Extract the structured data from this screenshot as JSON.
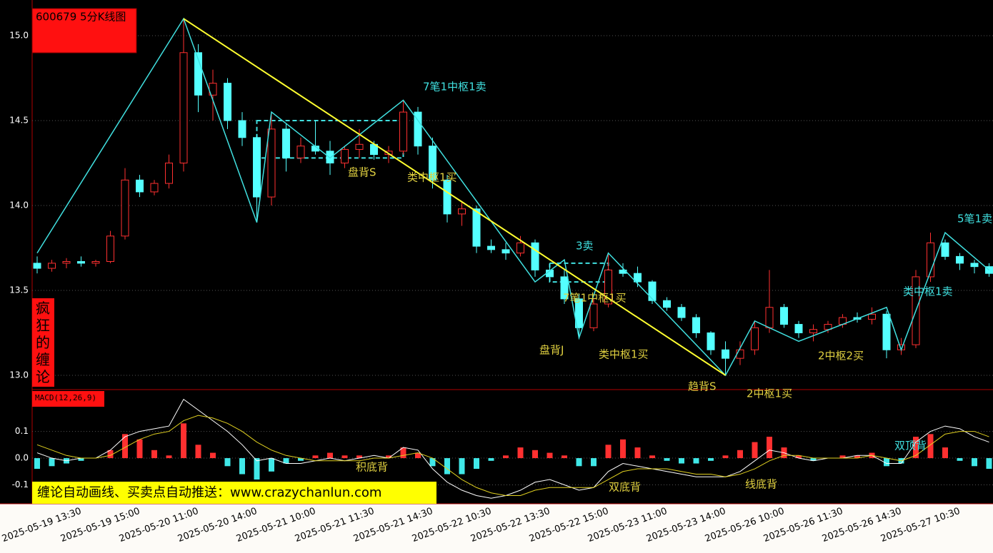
{
  "side_label": "疯狂的缠论",
  "banner": "缠论自动画线、买卖点自动推送：www.crazychanlun.com",
  "chart_data": [
    {
      "type": "candlestick",
      "title": "600679 5分K线图",
      "open": [
        13.66,
        13.63,
        13.66,
        13.67,
        13.66,
        13.67,
        13.82,
        14.15,
        14.08,
        14.13,
        14.25,
        14.9,
        14.65,
        14.72,
        14.5,
        14.4,
        14.05,
        14.45,
        14.28,
        14.35,
        14.32,
        14.25,
        14.33,
        14.36,
        14.3,
        14.32,
        14.55,
        14.35,
        14.15,
        13.95,
        13.98,
        13.76,
        13.74,
        13.72,
        13.78,
        13.62,
        13.58,
        13.45,
        13.28,
        13.42,
        13.62,
        13.6,
        13.55,
        13.44,
        13.4,
        13.34,
        13.25,
        13.15,
        13.1,
        13.15,
        13.28,
        13.4,
        13.3,
        13.25,
        13.27,
        13.3,
        13.34,
        13.33,
        13.36,
        13.15,
        13.18,
        13.58,
        13.78,
        13.7,
        13.66,
        13.64
      ],
      "high": [
        13.7,
        13.68,
        13.69,
        13.7,
        13.68,
        13.85,
        14.22,
        14.18,
        14.15,
        14.3,
        15.1,
        14.95,
        14.8,
        14.75,
        14.55,
        14.42,
        14.55,
        14.48,
        14.4,
        14.5,
        14.38,
        14.35,
        14.45,
        14.38,
        14.35,
        14.62,
        14.58,
        14.4,
        14.18,
        14.02,
        14.0,
        13.8,
        13.78,
        13.82,
        13.8,
        13.66,
        13.62,
        13.48,
        13.45,
        13.72,
        13.66,
        13.64,
        13.56,
        13.46,
        13.42,
        13.36,
        13.26,
        13.2,
        13.2,
        13.32,
        13.62,
        13.42,
        13.32,
        13.3,
        13.32,
        13.36,
        13.37,
        13.4,
        13.38,
        13.22,
        13.62,
        13.84,
        13.8,
        13.72,
        13.68,
        13.66
      ],
      "low": [
        13.6,
        13.61,
        13.63,
        13.64,
        13.64,
        13.66,
        13.8,
        14.05,
        14.06,
        14.1,
        14.2,
        14.55,
        14.5,
        14.45,
        14.35,
        13.9,
        14.0,
        14.2,
        14.25,
        14.3,
        14.18,
        14.22,
        14.28,
        14.27,
        14.25,
        14.3,
        14.3,
        14.1,
        13.9,
        13.88,
        13.72,
        13.72,
        13.68,
        13.7,
        13.58,
        13.55,
        13.42,
        13.22,
        13.26,
        13.4,
        13.58,
        13.52,
        13.42,
        13.38,
        13.32,
        13.22,
        13.12,
        13.0,
        13.06,
        13.12,
        13.25,
        13.28,
        13.22,
        13.2,
        13.25,
        13.28,
        13.31,
        13.3,
        13.1,
        13.12,
        13.16,
        13.55,
        13.68,
        13.62,
        13.6,
        13.58
      ],
      "close": [
        13.63,
        13.66,
        13.67,
        13.66,
        13.67,
        13.82,
        14.15,
        14.08,
        14.13,
        14.25,
        14.9,
        14.65,
        14.72,
        14.5,
        14.4,
        14.05,
        14.45,
        14.28,
        14.35,
        14.32,
        14.25,
        14.33,
        14.36,
        14.3,
        14.32,
        14.55,
        14.35,
        14.15,
        13.95,
        13.98,
        13.76,
        13.74,
        13.72,
        13.78,
        13.62,
        13.58,
        13.45,
        13.28,
        13.42,
        13.62,
        13.6,
        13.55,
        13.44,
        13.4,
        13.34,
        13.25,
        13.15,
        13.1,
        13.15,
        13.28,
        13.4,
        13.3,
        13.25,
        13.27,
        13.3,
        13.34,
        13.33,
        13.36,
        13.15,
        13.18,
        13.58,
        13.78,
        13.7,
        13.66,
        13.64,
        13.6
      ],
      "up_color": "#ff3030",
      "down_color": "#54ffff",
      "ylim": [
        12.92,
        15.21
      ],
      "yticks": [
        {
          "value": 13,
          "label": "13.0"
        },
        13.5,
        {
          "value": 14,
          "label": "14.0"
        },
        14.5,
        {
          "value": 15,
          "label": "15.0"
        }
      ],
      "grid": true,
      "strokes": {
        "color": "#40e0e0",
        "x": [
          0,
          10,
          15,
          16,
          20,
          25,
          34,
          36,
          37,
          39,
          47,
          49,
          52,
          58,
          59,
          62,
          65
        ],
        "y": [
          13.72,
          15.1,
          13.9,
          14.55,
          14.28,
          14.62,
          13.55,
          13.68,
          13.22,
          13.72,
          13.0,
          13.32,
          13.2,
          13.4,
          13.15,
          13.84,
          13.62
        ]
      },
      "trend_line": {
        "color": "#ffff30",
        "x": [
          10,
          47
        ],
        "y": [
          15.1,
          13.0
        ]
      },
      "zones": [
        {
          "x": [
            15,
            25
          ],
          "y": [
            14.28,
            14.5
          ]
        },
        {
          "x": [
            35,
            39
          ],
          "y": [
            13.55,
            13.66
          ]
        }
      ],
      "annotations": [
        {
          "text": "7笔1中枢1卖",
          "color": "#40e0e0"
        },
        {
          "text": "盘背S",
          "color": "#e0d040"
        },
        {
          "text": "类中枢1买",
          "color": "#e0d040"
        },
        {
          "text": "3卖",
          "color": "#40e0e0"
        },
        {
          "text": "7笔1中枢1买",
          "color": "#e0d040"
        },
        {
          "text": "盘背J",
          "color": "#e0d040"
        },
        {
          "text": "类中枢1买",
          "color": "#e0d040"
        },
        {
          "text": "趋背S",
          "color": "#e0d040"
        },
        {
          "text": "2中枢1买",
          "color": "#e0d040"
        },
        {
          "text": "2中枢2买",
          "color": "#e0d040"
        },
        {
          "text": "类中枢1卖",
          "color": "#40e0e0"
        },
        {
          "text": "5笔1卖",
          "color": "#40e0e0"
        }
      ]
    },
    {
      "type": "macd",
      "title": "MACD(12,26,9)",
      "categories": [
        null,
        null,
        null,
        "2025-05-19 13:30",
        null,
        null,
        null,
        "2025-05-19 15:00",
        null,
        null,
        null,
        "2025-05-20 11:00",
        null,
        null,
        null,
        "2025-05-20 14:00",
        null,
        null,
        null,
        "2025-05-21 10:00",
        null,
        null,
        null,
        "2025-05-21 11:30",
        null,
        null,
        null,
        "2025-05-21 14:30",
        null,
        null,
        null,
        "2025-05-22 10:30",
        null,
        null,
        null,
        "2025-05-22 13:30",
        null,
        null,
        null,
        "2025-05-22 15:00",
        null,
        null,
        null,
        "2025-05-23 11:00",
        null,
        null,
        null,
        "2025-05-23 14:00",
        null,
        null,
        null,
        "2025-05-26 10:00",
        null,
        null,
        null,
        "2025-05-26 11:30",
        null,
        null,
        null,
        "2025-05-26 14:30",
        null,
        null,
        null,
        "2025-05-27 10:30",
        null,
        null
      ],
      "histogram": {
        "up_color": "#ff3030",
        "down_color": "#40e8e8",
        "values": [
          -0.04,
          -0.03,
          -0.02,
          -0.01,
          0.0,
          0.03,
          0.09,
          0.07,
          0.03,
          0.01,
          0.13,
          0.05,
          0.02,
          -0.03,
          -0.06,
          -0.08,
          -0.05,
          -0.02,
          -0.01,
          0.01,
          0.02,
          0.01,
          0.01,
          0.0,
          0.01,
          0.04,
          0.02,
          -0.03,
          -0.06,
          -0.06,
          -0.04,
          -0.01,
          0.01,
          0.04,
          0.03,
          0.02,
          0.01,
          -0.03,
          -0.03,
          0.05,
          0.07,
          0.04,
          0.01,
          -0.01,
          -0.02,
          -0.02,
          -0.01,
          0.01,
          0.03,
          0.06,
          0.08,
          0.04,
          0.01,
          -0.01,
          0.0,
          0.01,
          0.01,
          0.02,
          -0.03,
          -0.02,
          0.08,
          0.09,
          0.04,
          -0.01,
          -0.03,
          -0.04
        ]
      },
      "dif": {
        "color": "#ffffff",
        "values": [
          0.02,
          0.0,
          -0.01,
          0.0,
          0.0,
          0.03,
          0.08,
          0.1,
          0.11,
          0.12,
          0.22,
          0.18,
          0.14,
          0.1,
          0.05,
          -0.01,
          0.0,
          -0.02,
          -0.02,
          -0.01,
          0.0,
          -0.01,
          0.0,
          0.01,
          0.0,
          0.04,
          0.03,
          -0.04,
          -0.09,
          -0.12,
          -0.14,
          -0.15,
          -0.14,
          -0.12,
          -0.09,
          -0.08,
          -0.1,
          -0.12,
          -0.11,
          -0.05,
          -0.02,
          -0.03,
          -0.04,
          -0.05,
          -0.06,
          -0.07,
          -0.07,
          -0.07,
          -0.05,
          -0.01,
          0.03,
          0.02,
          0.0,
          -0.01,
          0.0,
          0.0,
          0.01,
          0.01,
          -0.02,
          -0.02,
          0.06,
          0.1,
          0.12,
          0.11,
          0.08,
          0.06
        ]
      },
      "dea": {
        "color": "#e0d020",
        "values": [
          0.05,
          0.03,
          0.01,
          0.0,
          0.0,
          0.01,
          0.04,
          0.07,
          0.09,
          0.1,
          0.14,
          0.16,
          0.15,
          0.13,
          0.1,
          0.06,
          0.03,
          0.01,
          0.0,
          -0.01,
          -0.01,
          -0.01,
          -0.01,
          0.0,
          0.0,
          0.01,
          0.02,
          0.0,
          -0.04,
          -0.08,
          -0.11,
          -0.13,
          -0.14,
          -0.14,
          -0.12,
          -0.11,
          -0.11,
          -0.11,
          -0.11,
          -0.08,
          -0.05,
          -0.04,
          -0.04,
          -0.04,
          -0.05,
          -0.06,
          -0.06,
          -0.07,
          -0.06,
          -0.04,
          -0.01,
          0.01,
          0.01,
          0.0,
          0.0,
          0.0,
          0.0,
          0.01,
          0.0,
          -0.01,
          0.01,
          0.05,
          0.09,
          0.1,
          0.1,
          0.08
        ]
      },
      "ylim": [
        -0.168,
        0.251
      ],
      "yticks": [
        -0.1,
        {
          "value": 0,
          "label": "0.0"
        },
        0.1
      ],
      "annotations": [
        {
          "text": "积底背",
          "color": "#e0d040"
        },
        {
          "text": "双底背",
          "color": "#e0d040"
        },
        {
          "text": "线底背",
          "color": "#e0d040"
        },
        {
          "text": "双顶背",
          "color": "#40e0e0"
        }
      ]
    }
  ]
}
